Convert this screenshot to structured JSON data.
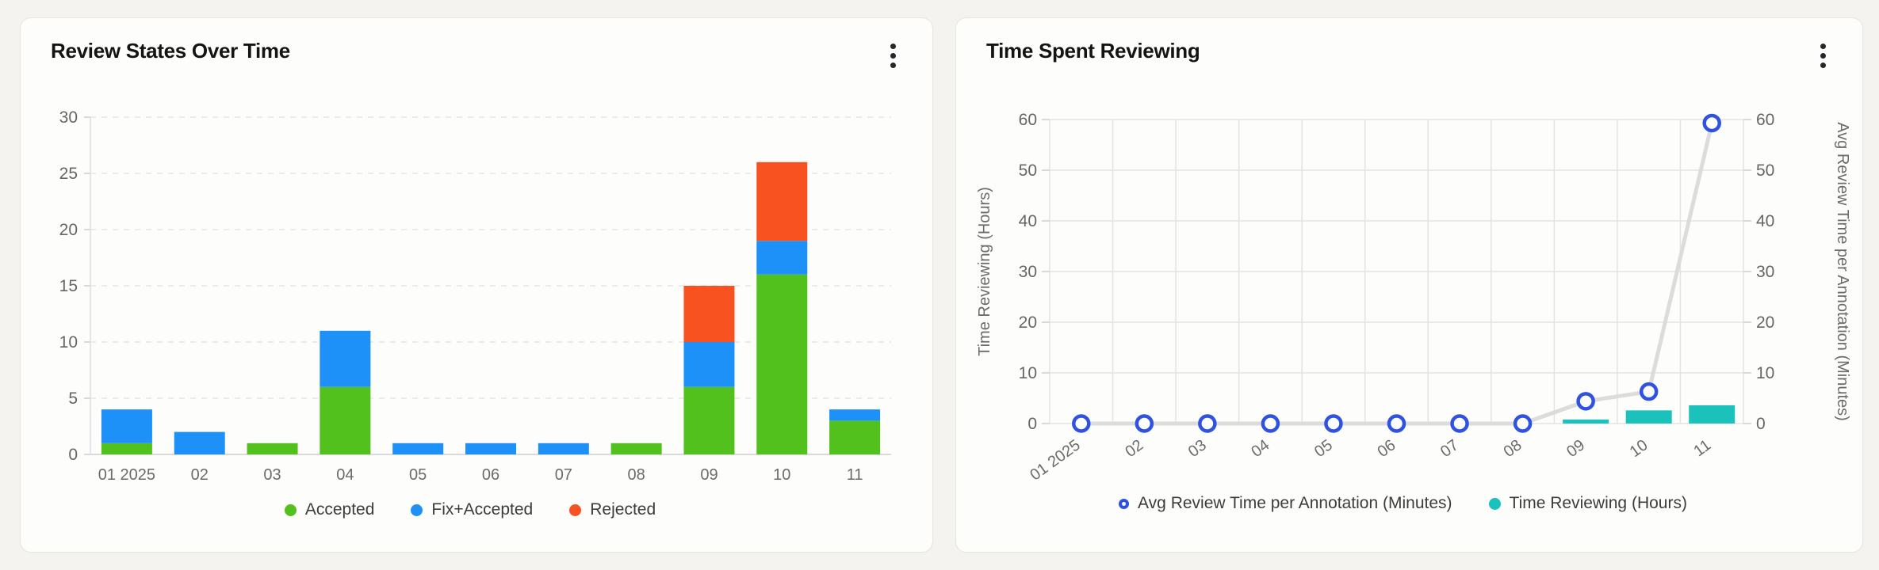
{
  "colors": {
    "page_background": "#f4f3ef",
    "card_background": "#fdfdfc",
    "accepted_green": "#52c11d",
    "fix_accepted_blue": "#1e91f8",
    "rejected_orange": "#f85220",
    "time_reviewing_teal": "#1bc2bb",
    "avg_review_marker_blue": "#2f52e0",
    "line_gray": "#dcdcdc"
  },
  "chart_data": [
    {
      "type": "bar",
      "stacked": true,
      "title": "Review States Over Time",
      "categories": [
        "01 2025",
        "02",
        "03",
        "04",
        "05",
        "06",
        "07",
        "08",
        "09",
        "10",
        "11"
      ],
      "series": [
        {
          "name": "Accepted",
          "color": "#52c11d",
          "values": [
            1,
            0,
            1,
            6,
            0,
            0,
            0,
            1,
            6,
            16,
            3
          ]
        },
        {
          "name": "Fix+Accepted",
          "color": "#1e91f8",
          "values": [
            3,
            2,
            0,
            5,
            1,
            1,
            1,
            0,
            4,
            3,
            1
          ]
        },
        {
          "name": "Rejected",
          "color": "#f85220",
          "values": [
            0,
            0,
            0,
            0,
            0,
            0,
            0,
            0,
            5,
            7,
            0
          ]
        }
      ],
      "xlabel": "",
      "ylabel": "",
      "ylim": [
        0,
        30
      ],
      "ytick_step": 5,
      "grid": "horizontal-dashed",
      "legend_position": "bottom"
    },
    {
      "type": "line",
      "subtype": "dual-axis line + bar",
      "title": "Time Spent Reviewing",
      "categories": [
        "01 2025",
        "02",
        "03",
        "04",
        "05",
        "06",
        "07",
        "08",
        "09",
        "10",
        "11"
      ],
      "left_axis": {
        "label": "Time Reviewing (Hours)",
        "range": [
          0,
          60
        ],
        "tick_step": 10
      },
      "right_axis": {
        "label": "Avg Review Time per Annotation (Minutes)",
        "range": [
          0,
          60
        ],
        "tick_step": 10
      },
      "series": [
        {
          "name": "Avg Review Time per Annotation (Minutes)",
          "type": "line",
          "axis": "right",
          "color": "#2f52e0",
          "line_color": "#dcdcdc",
          "values": [
            0,
            0,
            0,
            0,
            0,
            0,
            0,
            0,
            4.4,
            6.3,
            59.3
          ]
        },
        {
          "name": "Time Reviewing (Hours)",
          "type": "bar",
          "axis": "left",
          "color": "#1bc2bb",
          "values": [
            0,
            0,
            0,
            0,
            0,
            0,
            0,
            0,
            0.8,
            2.6,
            3.6
          ]
        }
      ],
      "grid": "full-solid",
      "legend_position": "bottom",
      "xtick_rotation": -36
    }
  ]
}
